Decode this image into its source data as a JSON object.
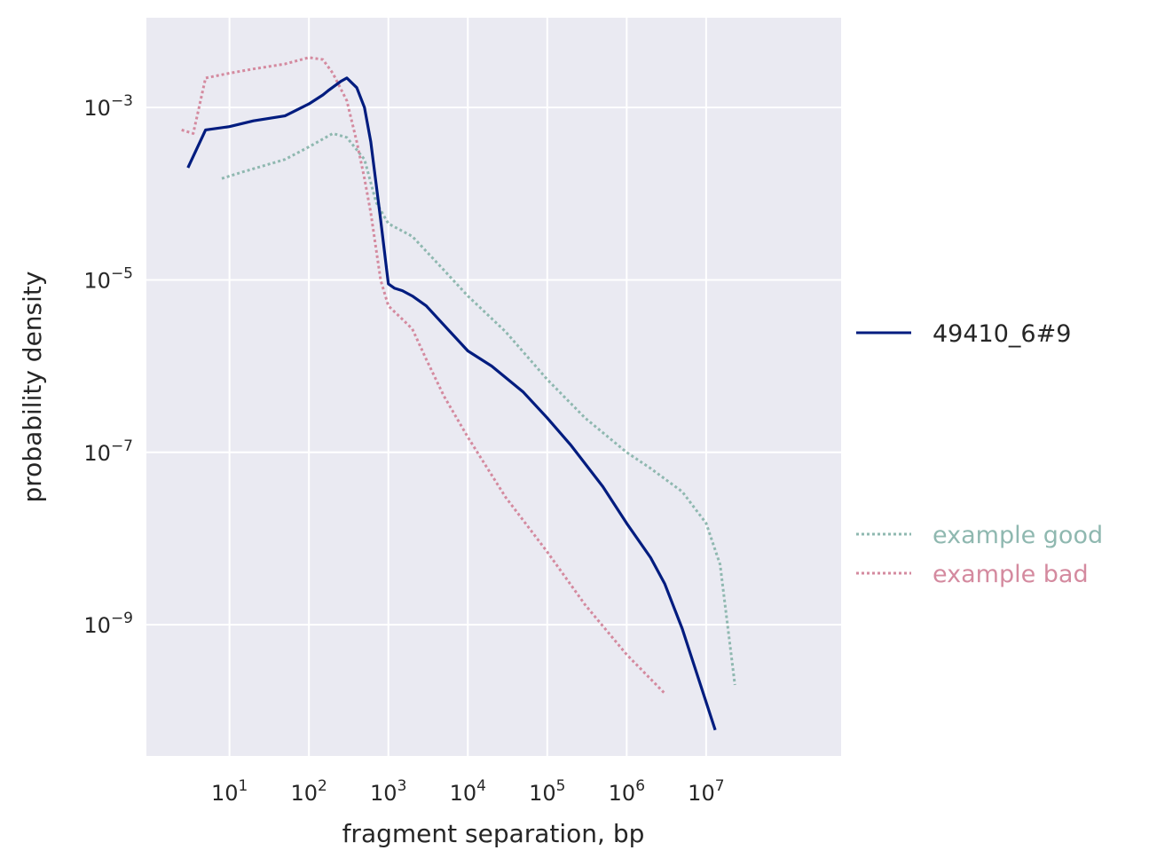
{
  "chart_data": {
    "type": "line",
    "xlabel": "fragment separation, bp",
    "ylabel": "probability density",
    "xscale": "log",
    "yscale": "log",
    "xlim": [
      0.9,
      500000000
    ],
    "ylim": [
      3e-11,
      0.011
    ],
    "grid": true,
    "legend_position": "right",
    "x_ticks": [
      {
        "base": "10",
        "exp": "1"
      },
      {
        "base": "10",
        "exp": "2"
      },
      {
        "base": "10",
        "exp": "3"
      },
      {
        "base": "10",
        "exp": "4"
      },
      {
        "base": "10",
        "exp": "5"
      },
      {
        "base": "10",
        "exp": "6"
      },
      {
        "base": "10",
        "exp": "7"
      }
    ],
    "y_ticks": [
      {
        "base": "10",
        "exp": "−3"
      },
      {
        "base": "10",
        "exp": "−5"
      },
      {
        "base": "10",
        "exp": "−7"
      },
      {
        "base": "10",
        "exp": "−9"
      }
    ],
    "series": [
      {
        "name": "49410_6#9",
        "style": "solid",
        "color": "#001c7f",
        "x": [
          3,
          5,
          10,
          20,
          50,
          100,
          150,
          180,
          250,
          300,
          400,
          500,
          600,
          800,
          1000,
          1200,
          1500,
          2000,
          3000,
          5000,
          10000,
          20000,
          50000,
          100000,
          200000,
          500000,
          1000000,
          2000000,
          3000000,
          5000000,
          13000000
        ],
        "y": [
          0.0002,
          0.00055,
          0.0006,
          0.0007,
          0.0008,
          0.0011,
          0.0014,
          0.0016,
          0.002,
          0.0022,
          0.0017,
          0.001,
          0.0004,
          5e-05,
          9e-06,
          8e-06,
          7.5e-06,
          6.5e-06,
          5e-06,
          3e-06,
          1.5e-06,
          1e-06,
          5e-07,
          2.5e-07,
          1.2e-07,
          4e-08,
          1.5e-08,
          6e-09,
          3e-09,
          9e-10,
          6e-11
        ]
      },
      {
        "name": "example good",
        "style": "dotted",
        "color": "#8fb8b0",
        "x": [
          8,
          15,
          50,
          100,
          200,
          300,
          500,
          700,
          1000,
          2000,
          5000,
          10000,
          30000,
          100000,
          300000,
          1000000,
          2000000,
          5000000,
          10000000,
          15000000,
          23000000
        ],
        "y": [
          0.00015,
          0.00018,
          0.00025,
          0.00035,
          0.0005,
          0.00045,
          0.00025,
          8e-05,
          4.5e-05,
          3.2e-05,
          1.3e-05,
          6.5e-06,
          2.5e-06,
          7e-07,
          2.5e-07,
          1e-07,
          6.5e-08,
          3.5e-08,
          1.5e-08,
          5e-09,
          2e-10
        ]
      },
      {
        "name": "example bad",
        "style": "dotted",
        "color": "#d48a9f",
        "x": [
          2.5,
          3.5,
          5,
          10,
          20,
          50,
          100,
          150,
          200,
          300,
          400,
          500,
          600,
          800,
          1000,
          1500,
          2000,
          3000,
          5000,
          10000,
          30000,
          100000,
          300000,
          1000000,
          3000000
        ],
        "y": [
          0.00055,
          0.0005,
          0.0022,
          0.0025,
          0.0028,
          0.0032,
          0.0038,
          0.0036,
          0.0025,
          0.0012,
          0.0004,
          0.00015,
          6e-05,
          1e-05,
          5e-06,
          3.5e-06,
          2.7e-06,
          1.2e-06,
          4.5e-07,
          1.5e-07,
          3e-08,
          7e-09,
          1.7e-09,
          4.5e-10,
          1.6e-10
        ]
      }
    ]
  }
}
